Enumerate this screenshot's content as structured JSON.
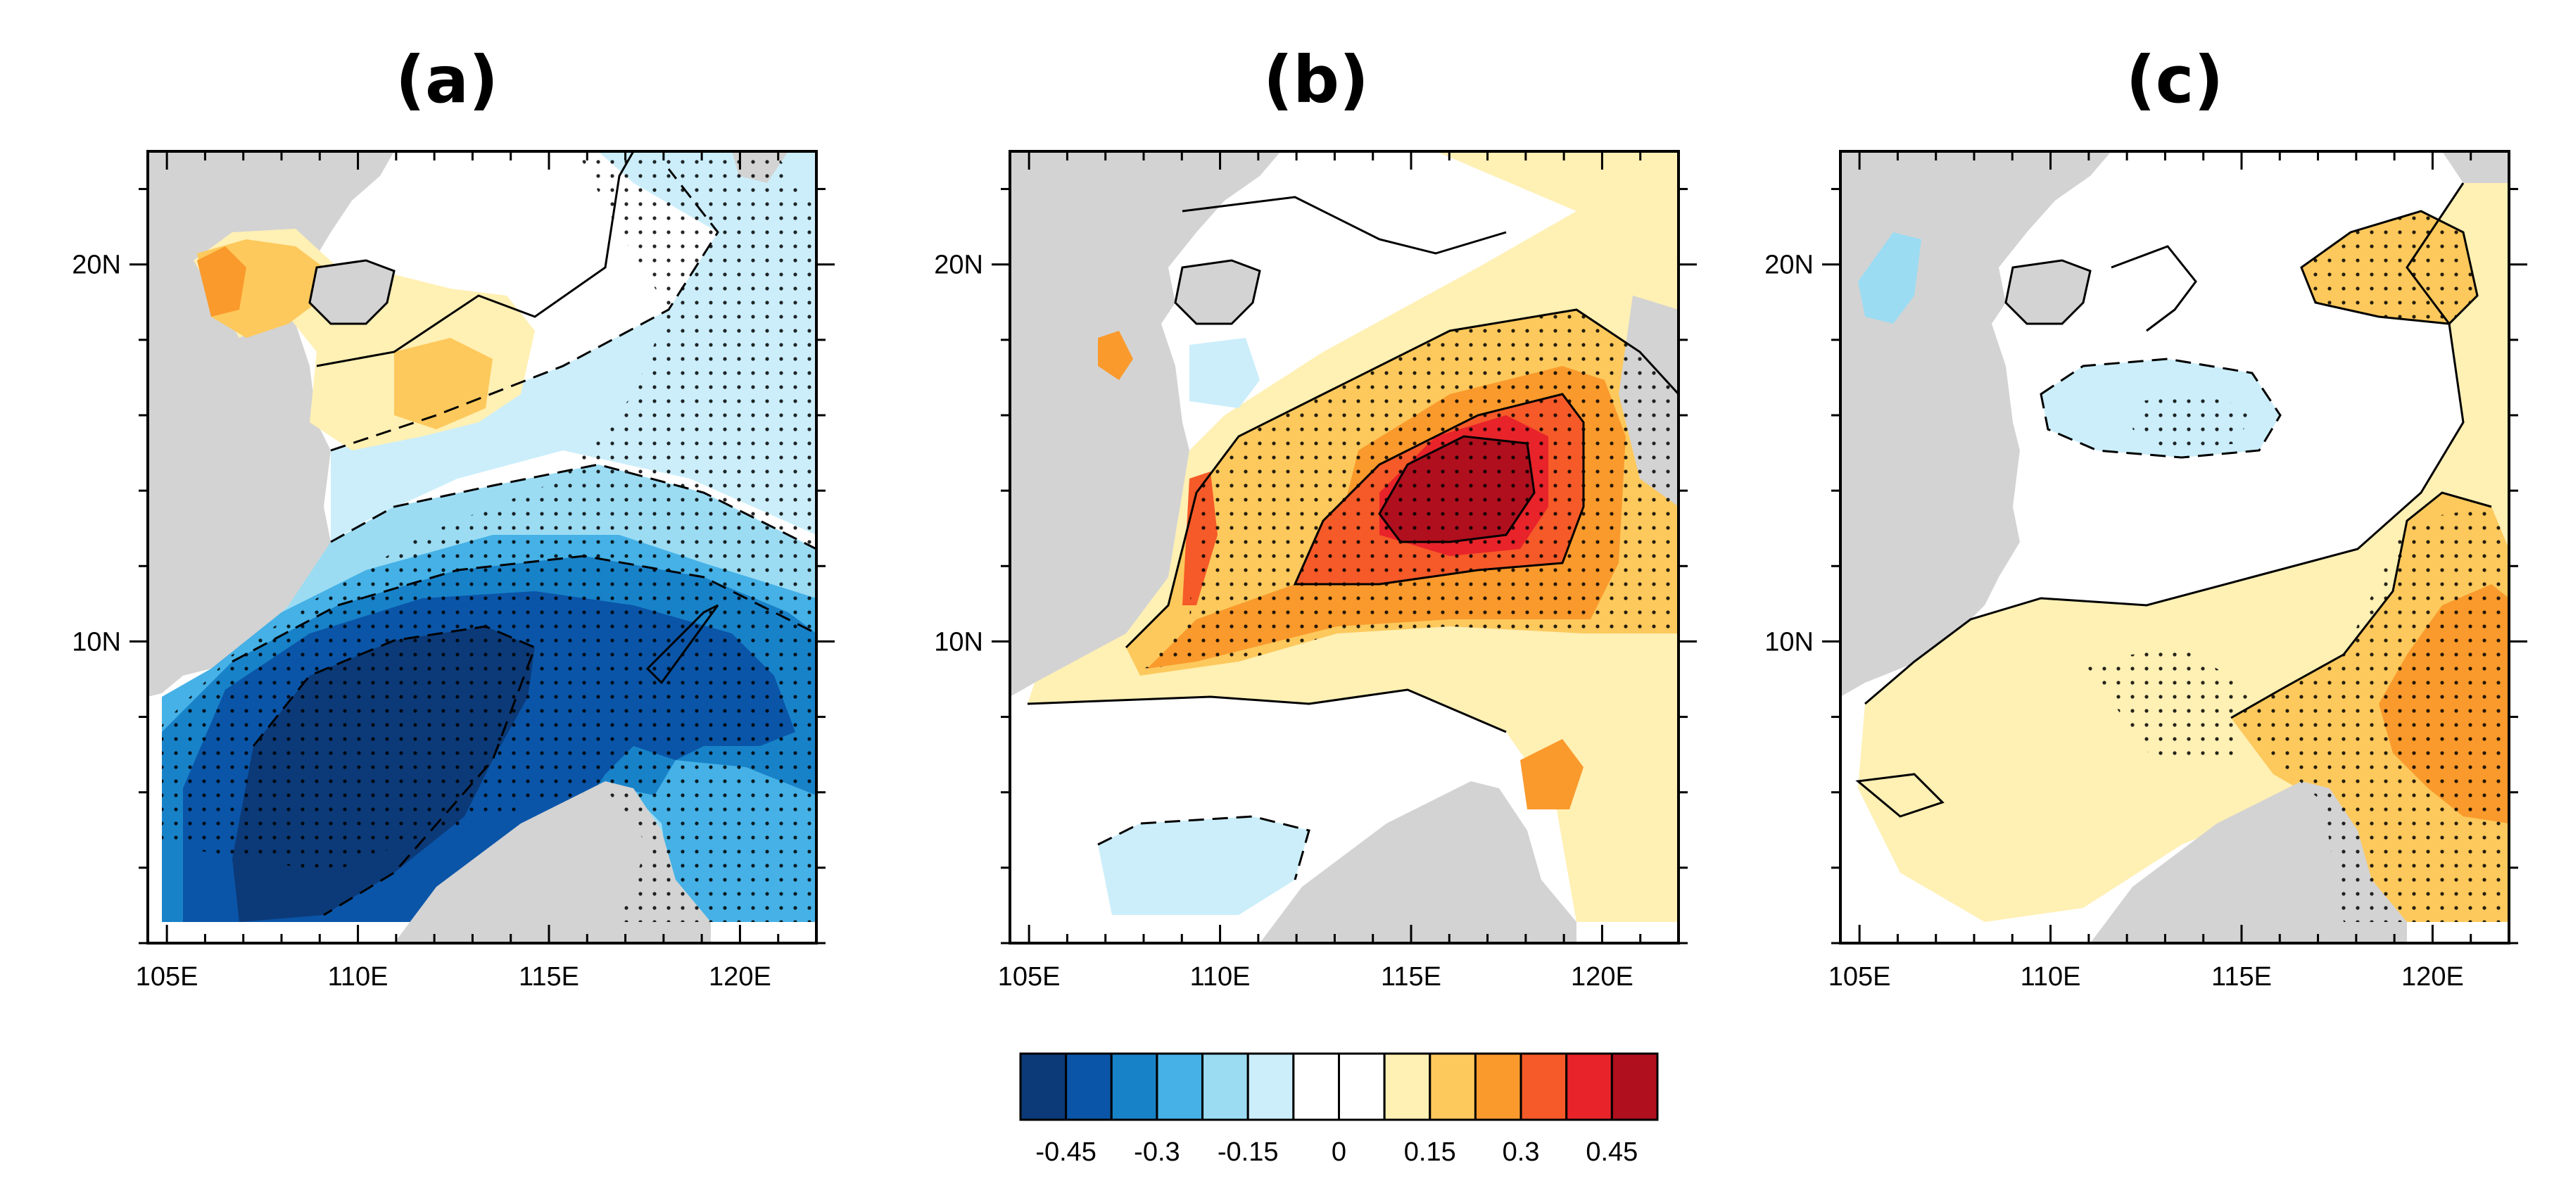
{
  "chart_data": {
    "type": "map",
    "description_units": "anomaly field over the South China Sea",
    "panels": [
      {
        "title": "(a)"
      },
      {
        "title": "(b)"
      },
      {
        "title": "(c)"
      }
    ],
    "lon_range": [
      104.5,
      122
    ],
    "lat_range": [
      2,
      23
    ],
    "x_ticks": [
      {
        "value": 105,
        "label": "105E"
      },
      {
        "value": 110,
        "label": "110E"
      },
      {
        "value": 115,
        "label": "115E"
      },
      {
        "value": 120,
        "label": "120E"
      }
    ],
    "y_ticks": [
      {
        "value": 10,
        "label": "10N"
      },
      {
        "value": 20,
        "label": "20N"
      }
    ],
    "colorbar": {
      "levels": [
        -0.45,
        -0.375,
        -0.3,
        -0.225,
        -0.15,
        -0.075,
        0,
        0.075,
        0.15,
        0.225,
        0.3,
        0.375,
        0.45
      ],
      "labels": [
        {
          "value": -0.45,
          "text": "-0.45"
        },
        {
          "value": -0.3,
          "text": "-0.3"
        },
        {
          "value": -0.15,
          "text": "-0.15"
        },
        {
          "value": 0,
          "text": "0"
        },
        {
          "value": 0.15,
          "text": "0.15"
        },
        {
          "value": 0.3,
          "text": "0.3"
        },
        {
          "value": 0.45,
          "text": "0.45"
        }
      ],
      "colors": [
        "#0c3a78",
        "#0a55a8",
        "#1882c8",
        "#45b1e6",
        "#9bdcf3",
        "#cbeefa",
        "#ffffff",
        "#ffffff",
        "#fff0b4",
        "#fdc95c",
        "#fa9a2c",
        "#f55a28",
        "#e8232a",
        "#b00f1e"
      ]
    },
    "land_color": "#d3d3d3",
    "stippling": "significant regions"
  }
}
